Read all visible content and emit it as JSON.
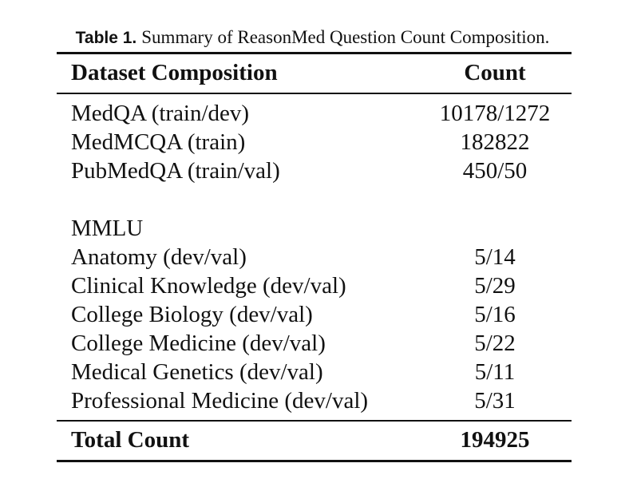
{
  "caption": {
    "label": "Table 1.",
    "text": "Summary of ReasonMed Question Count Composition."
  },
  "table": {
    "header": {
      "composition": "Dataset Composition",
      "count": "Count"
    },
    "rows": [
      {
        "name": "MedQA (train/dev)",
        "count": "10178/1272"
      },
      {
        "name": "MedMCQA (train)",
        "count": "182822"
      },
      {
        "name": "PubMedQA (train/val)",
        "count": "450/50"
      },
      {
        "name": "MMLU",
        "count": ""
      },
      {
        "name": "Anatomy (dev/val)",
        "count": "5/14"
      },
      {
        "name": "Clinical Knowledge (dev/val)",
        "count": "5/29"
      },
      {
        "name": "College Biology (dev/val)",
        "count": "5/16"
      },
      {
        "name": "College Medicine (dev/val)",
        "count": "5/22"
      },
      {
        "name": "Medical Genetics (dev/val)",
        "count": "5/11"
      },
      {
        "name": "Professional Medicine (dev/val)",
        "count": "5/31"
      }
    ],
    "total": {
      "name": "Total Count",
      "count": "194925"
    }
  }
}
